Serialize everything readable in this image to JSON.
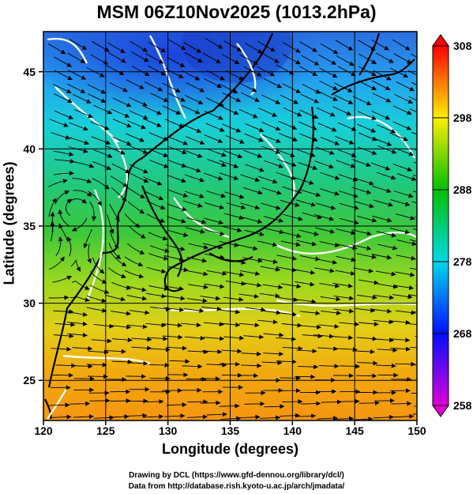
{
  "title": "MSM 06Z10Nov2025 (1013.2hPa)",
  "credits": {
    "line1": "Drawing by DCL (https://www.gfd-dennou.org/library/dcl/)",
    "line2": "Data from http://database.rish.kyoto-u.ac.jp/arch/jmadata/"
  },
  "chart_data": {
    "type": "heatmap",
    "xlabel": "Longitude (degrees)",
    "ylabel": "Latitude  (degrees)",
    "xlim": [
      120,
      150
    ],
    "ylim": [
      22.4,
      47.6
    ],
    "x_ticks": [
      "120",
      "125",
      "130",
      "135",
      "140",
      "145",
      "150"
    ],
    "y_ticks": [
      "25",
      "30",
      "35",
      "40",
      "45"
    ],
    "grid": true,
    "colorbar": {
      "ticks": [
        "258",
        "268",
        "278",
        "288",
        "298",
        "308"
      ],
      "range": [
        258,
        308
      ],
      "colors": [
        "#e000d8",
        "#0010ff",
        "#00d8e8",
        "#00c000",
        "#ffee00",
        "#ff0000"
      ]
    }
  }
}
